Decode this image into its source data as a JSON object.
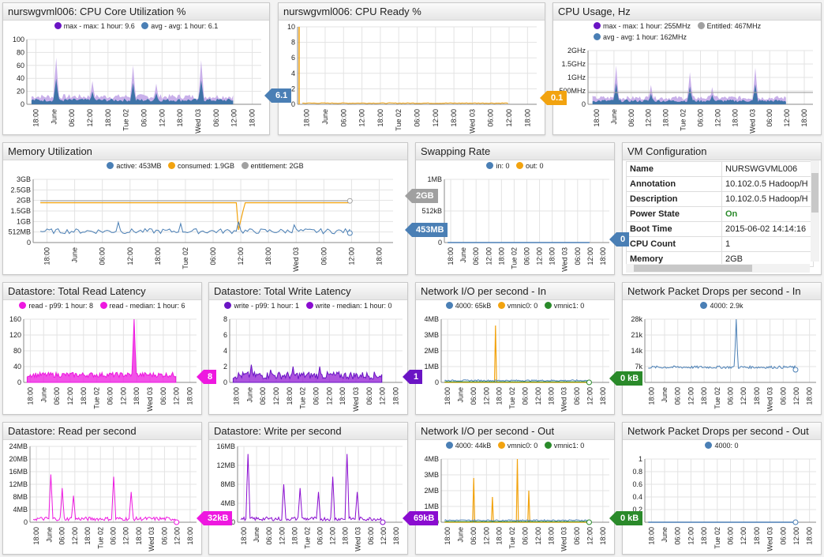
{
  "xticks": [
    "18:00",
    "June",
    "06:00",
    "12:00",
    "18:00",
    "Tue 02",
    "06:00",
    "12:00",
    "18:00",
    "Wed 03",
    "06:00",
    "12:00",
    "18:00"
  ],
  "colors": {
    "purple": "#6a14c4",
    "blue": "#4a7fb5",
    "orange": "#f2a30f",
    "gray": "#a0a0a0",
    "magenta": "#ee18e0",
    "violet": "#8a0cd0",
    "green": "#2a8a2a"
  },
  "panels": {
    "cpu_core": {
      "title": "nurswgvml006: CPU Core Utilization %",
      "legend": [
        "max - max: 1 hour: 9.6",
        "avg - avg: 1 hour: 6.1"
      ],
      "badge": "6.1"
    },
    "cpu_ready": {
      "title": "nurswgvml006: CPU Ready %",
      "badge": "0.1"
    },
    "cpu_usage": {
      "title": "CPU Usage, Hz",
      "legend": [
        "max - max: 1 hour: 255MHz",
        "Entitled: 467MHz",
        "avg - avg: 1 hour: 162MHz"
      ]
    },
    "memory": {
      "title": "Memory Utilization",
      "legend": [
        "active: 453MB",
        "consumed: 1.9GB",
        "entitlement: 2GB"
      ],
      "badge_a": "2GB",
      "badge_b": "453MB"
    },
    "swap": {
      "title": "Swapping Rate",
      "legend": [
        "in: 0",
        "out: 0"
      ],
      "badge": "0"
    },
    "vmconfig": {
      "title": "VM Configuration",
      "rows": [
        {
          "k": "Name",
          "v": "NURSWGVML006"
        },
        {
          "k": "Annotation",
          "v": "10.102.0.5 Hadoop/H"
        },
        {
          "k": "Description",
          "v": "10.102.0.5 Hadoop/H"
        },
        {
          "k": "Power State",
          "v": "On"
        },
        {
          "k": "Boot Time",
          "v": "2015-06-02 14:14:16"
        },
        {
          "k": "CPU Count",
          "v": "1"
        },
        {
          "k": "Memory",
          "v": "2GB"
        }
      ]
    },
    "ds_read_lat": {
      "title": "Datastore: Total Read Latency",
      "legend": [
        "read - p99: 1 hour: 8",
        "read - median: 1 hour: 6"
      ],
      "badge": "8"
    },
    "ds_write_lat": {
      "title": "Datastore: Total Write Latency",
      "legend": [
        "write - p99: 1 hour: 1",
        "write - median: 1 hour: 0"
      ],
      "badge": "1"
    },
    "net_in": {
      "title": "Network I/O per second - In",
      "legend": [
        "4000: 65kB",
        "vmnic0: 0",
        "vmnic1: 0"
      ],
      "badge": "0 kB"
    },
    "drops_in": {
      "title": "Network Packet Drops per second - In",
      "legend": [
        "4000: 2.9k"
      ]
    },
    "ds_read": {
      "title": "Datastore: Read per second",
      "badge": "32kB"
    },
    "ds_write": {
      "title": "Datastore: Write per second",
      "badge": "69kB"
    },
    "net_out": {
      "title": "Network I/O per second - Out",
      "legend": [
        "4000: 44kB",
        "vmnic0: 0",
        "vmnic1: 0"
      ],
      "badge": "0 kB"
    },
    "drops_out": {
      "title": "Network Packet Drops per second - Out",
      "legend": [
        "4000: 0"
      ]
    }
  },
  "chart_data": [
    {
      "type": "area",
      "title": "nurswgvml006: CPU Core Utilization %",
      "ylim": [
        0,
        100
      ],
      "yticks": [
        "100",
        "80",
        "60",
        "40",
        "20",
        "0"
      ],
      "series": [
        {
          "name": "max - max: 1 hour: 9.6",
          "peaks": [
            [
              0.12,
              72
            ],
            [
              0.3,
              36
            ],
            [
              0.5,
              60
            ],
            [
              0.62,
              32
            ],
            [
              0.84,
              68
            ]
          ]
        },
        {
          "name": "avg - avg: 1 hour: 6.1",
          "peaks": [
            [
              0.12,
              42
            ],
            [
              0.3,
              20
            ],
            [
              0.5,
              38
            ],
            [
              0.84,
              24
            ]
          ]
        }
      ]
    },
    {
      "type": "line",
      "title": "nurswgvml006: CPU Ready %",
      "ylim": [
        0,
        10
      ],
      "yticks": [
        "10",
        "8",
        "6",
        "4",
        "2",
        "0"
      ]
    },
    {
      "type": "area",
      "title": "CPU Usage, Hz",
      "yticks": [
        "2GHz",
        "1.5GHz",
        "1GHz",
        "500MHz",
        "0"
      ]
    },
    {
      "type": "line",
      "title": "Memory Utilization",
      "yticks": [
        "3GB",
        "2.5GB",
        "2GB",
        "1.5GB",
        "1GB",
        "512MB",
        "0"
      ]
    },
    {
      "type": "line",
      "title": "Swapping Rate",
      "yticks": [
        "1MB",
        "512kB",
        "0"
      ]
    },
    {
      "type": "area",
      "title": "Datastore: Total Read Latency",
      "ylim": [
        0,
        160
      ],
      "yticks": [
        "160",
        "120",
        "80",
        "40",
        "0"
      ]
    },
    {
      "type": "area",
      "title": "Datastore: Total Write Latency",
      "yticks": [
        "8",
        "6",
        "4",
        "2",
        "0"
      ]
    },
    {
      "type": "line",
      "title": "Network I/O per second - In",
      "yticks": [
        "4MB",
        "3MB",
        "2MB",
        "1MB",
        "0"
      ]
    },
    {
      "type": "line",
      "title": "Network Packet Drops per second - In",
      "yticks": [
        "28k",
        "21k",
        "14k",
        "7k",
        "0"
      ]
    },
    {
      "type": "line",
      "title": "Datastore: Read per second",
      "yticks": [
        "24MB",
        "20MB",
        "16MB",
        "12MB",
        "8MB",
        "4MB",
        "0"
      ]
    },
    {
      "type": "line",
      "title": "Datastore: Write per second",
      "yticks": [
        "16MB",
        "12MB",
        "8MB",
        "4MB",
        "0"
      ]
    },
    {
      "type": "line",
      "title": "Network I/O per second - Out",
      "yticks": [
        "4MB",
        "3MB",
        "2MB",
        "1MB",
        "0"
      ]
    },
    {
      "type": "line",
      "title": "Network Packet Drops per second - Out",
      "yticks": [
        "1",
        "0.8",
        "0.6",
        "0.4",
        "0.2",
        "0"
      ]
    }
  ]
}
